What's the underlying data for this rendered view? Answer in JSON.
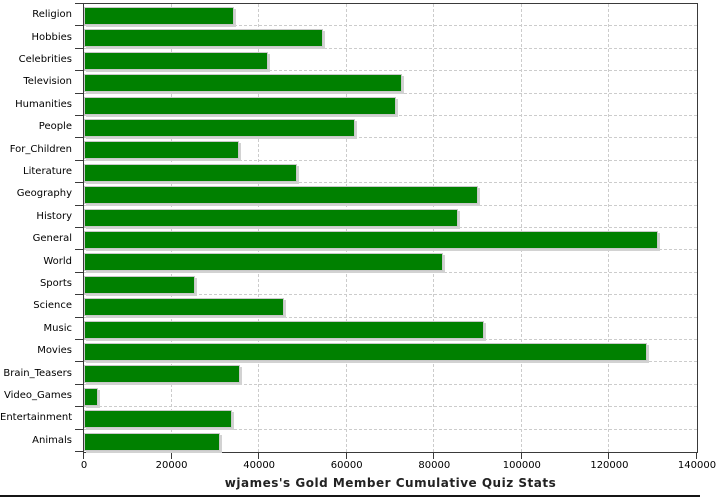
{
  "chart_data": {
    "type": "bar",
    "orientation": "horizontal",
    "title": "wjames's Gold Member Cumulative Quiz Stats",
    "categories": [
      "Religion",
      "Hobbies",
      "Celebrities",
      "Television",
      "Humanities",
      "People",
      "For_Children",
      "Literature",
      "Geography",
      "History",
      "General",
      "World",
      "Sports",
      "Science",
      "Music",
      "Movies",
      "Brain_Teasers",
      "Video_Games",
      "Entertainment",
      "Animals"
    ],
    "values": [
      34200,
      54500,
      42100,
      72700,
      71300,
      61800,
      35300,
      48600,
      89900,
      85500,
      131200,
      82100,
      25300,
      45600,
      91400,
      128500,
      35700,
      3300,
      33700,
      31000
    ],
    "xlim": [
      0,
      140000
    ],
    "x_tick_values": [
      0,
      20000,
      40000,
      60000,
      80000,
      100000,
      120000,
      140000
    ],
    "x_tick_labels": [
      "0",
      "20000",
      "40000",
      "60000",
      "80000",
      "100000",
      "120000",
      "140000"
    ],
    "grid": "dashed",
    "legend": "none",
    "colors": {
      "bar": "#008000",
      "bar_outline": "#c9c9c9",
      "bar_shadow": "#d2d2d2",
      "grid": "#cccccc",
      "axis": "#3a3a3a",
      "text": "#000000",
      "title": "#222222",
      "bottom_rule": "#151515"
    }
  }
}
